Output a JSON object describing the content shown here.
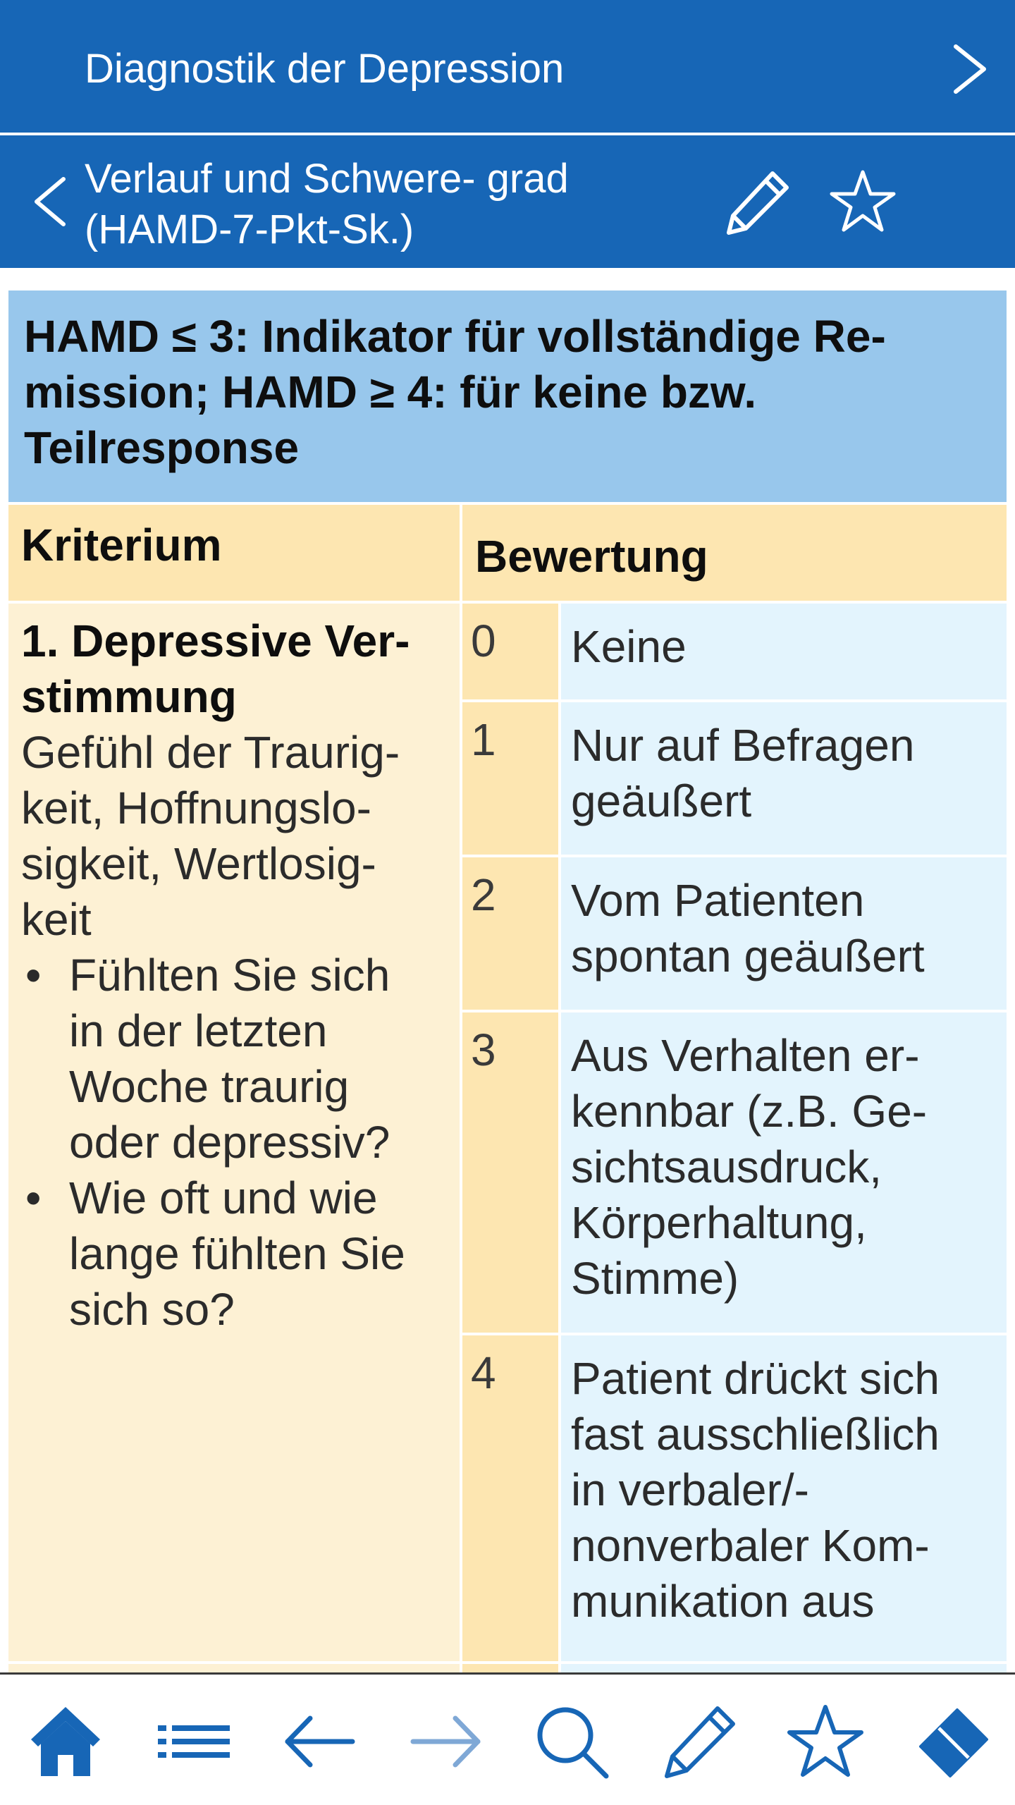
{
  "header": {
    "title": "Diagnostik der Depression",
    "subtitle_lines": [
      "Verlauf und Schwere- grad",
      "(HAMD-7-Pkt-Sk.)"
    ]
  },
  "icons": {
    "next": "chevron-right-icon",
    "back": "chevron-left-icon",
    "edit": "pencil-icon",
    "favorite": "star-icon"
  },
  "summary_lines": [
    "HAMD ≤ 3: Indikator für vollständige Re-",
    "mission; HAMD ≥ 4: für keine bzw.",
    "Teilresponse"
  ],
  "table": {
    "col_criterion": "Kriterium",
    "col_rating": "Bewertung",
    "criterion": {
      "title_lines": [
        "1. Depressive Ver-",
        "stimmung"
      ],
      "desc_lines": [
        "Gefühl der Traurig-",
        "keit, Hoffnungslo-",
        "sigkeit, Wertlosig-",
        "keit"
      ],
      "bullet": "•",
      "questions": [
        {
          "lines": [
            "Fühlten Sie sich",
            "in der letzten",
            "Woche traurig",
            "oder depressiv?"
          ]
        },
        {
          "lines": [
            "Wie oft und wie",
            "lange fühlten Sie",
            "sich so?"
          ]
        }
      ]
    },
    "scores": [
      {
        "value": "0",
        "lines": [
          "Keine"
        ]
      },
      {
        "value": "1",
        "lines": [
          "Nur auf Befragen",
          "geäußert"
        ]
      },
      {
        "value": "2",
        "lines": [
          "Vom Patienten",
          "spontan geäußert"
        ]
      },
      {
        "value": "3",
        "lines": [
          "Aus Verhalten er-",
          "kennbar (z.B. Ge-",
          "sichtsausdruck,",
          "Körperhaltung,",
          "Stimme)"
        ]
      },
      {
        "value": "4",
        "lines": [
          "Patient drückt sich",
          "fast ausschließlich",
          "in verbaler/-",
          "nonverbaler Kom-",
          "munikation aus"
        ]
      }
    ]
  },
  "toolbar": {
    "items": [
      "home-icon",
      "list-icon",
      "arrow-left-icon",
      "arrow-right-icon",
      "search-icon",
      "pencil-icon",
      "star-icon",
      "eraser-icon"
    ]
  },
  "colors": {
    "header_blue": "#1766b6",
    "summary_blue": "#98c7ec",
    "header_yellow": "#fde6b1",
    "cell_yellow": "#fdf1d4",
    "cell_blue": "#e3f4fd",
    "toolbar_icon_blue": "#1766b6",
    "toolbar_icon_disabled": "#7fa8d6"
  }
}
